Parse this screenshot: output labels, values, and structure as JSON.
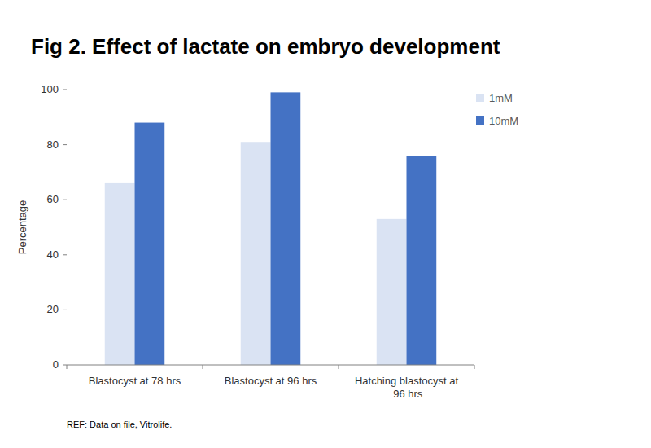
{
  "chart_data": {
    "type": "bar",
    "title": "Fig 2. Effect of lactate on embryo development",
    "y_label": "Percentage",
    "categories": [
      "Blastocyst at 78 hrs",
      "Blastocyst at 96 hrs",
      "Hatching blastocyst at 96 hrs"
    ],
    "series": [
      {
        "name": "1mM",
        "color": "#dae3f3",
        "values": [
          66,
          81,
          53
        ]
      },
      {
        "name": "10mM",
        "color": "#4472c4",
        "values": [
          88,
          99,
          76
        ]
      }
    ],
    "ylim": [
      0,
      100
    ],
    "yticks": [
      0,
      20,
      40,
      60,
      80,
      100
    ],
    "grid": false,
    "legend": "top-right",
    "caption": "REF: Data on file, Vitrolife."
  }
}
